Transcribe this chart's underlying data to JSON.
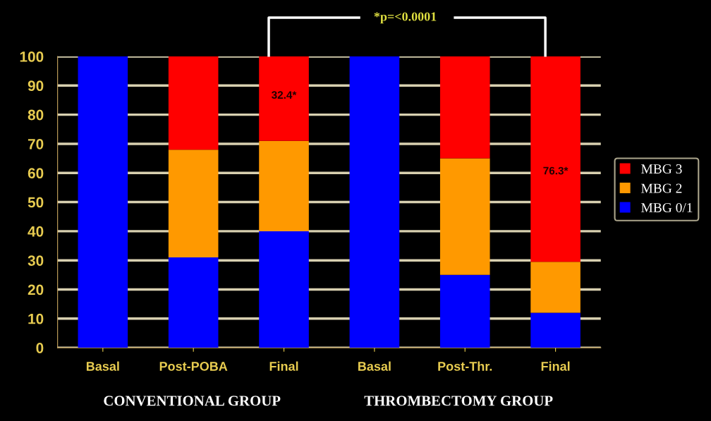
{
  "chart_data": {
    "type": "bar",
    "stacked": true,
    "categories": [
      "Basal",
      "Post-POBA",
      "Final",
      "Basal",
      "Post-Thr.",
      "Final"
    ],
    "series": [
      {
        "name": "MBG 0/1",
        "color": "#0000ff",
        "values": [
          100,
          31,
          40,
          100,
          25,
          12
        ]
      },
      {
        "name": "MBG 2",
        "color": "#ff9900",
        "values": [
          0,
          37,
          31,
          0,
          40,
          17.5
        ]
      },
      {
        "name": "MBG 3",
        "color": "#ff0000",
        "values": [
          0,
          32,
          29,
          0,
          35,
          70.5
        ]
      }
    ],
    "ylim": [
      0,
      100
    ],
    "yticks": [
      0,
      10,
      20,
      30,
      40,
      50,
      60,
      70,
      80,
      90,
      100
    ],
    "grid": "y",
    "legend": "right",
    "annotations": [
      "32.4*",
      "76.3*",
      "*p=<0.0001",
      "CONVENTIONAL GROUP",
      "THROMBECTOMY GROUP"
    ]
  }
}
